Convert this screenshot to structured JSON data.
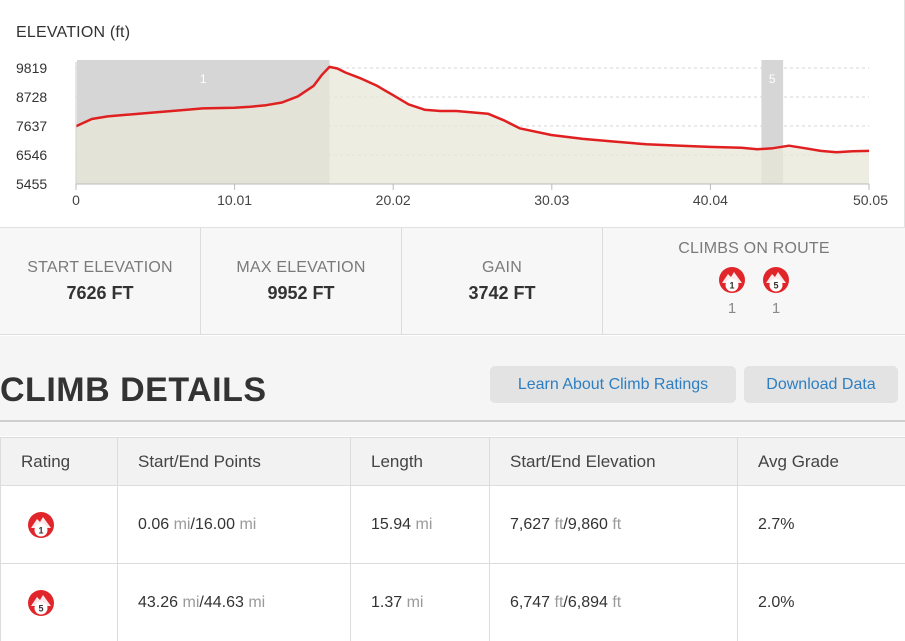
{
  "chart": {
    "title": "ELEVATION (ft)",
    "y_ticks": [
      "9819",
      "8728",
      "7637",
      "6546",
      "5455"
    ],
    "x_ticks": [
      "0",
      "10.01",
      "20.02",
      "30.03",
      "40.04",
      "50.05"
    ],
    "climb_regions": [
      {
        "label": "1",
        "start_mi": 0.06,
        "end_mi": 16.0
      },
      {
        "label": "5",
        "start_mi": 43.26,
        "end_mi": 44.63
      }
    ],
    "line_color": "#e02020",
    "fill_color": "#e8e7d8",
    "highlight_color": "#cfcfcf"
  },
  "chart_data": {
    "type": "area",
    "title": "ELEVATION (ft)",
    "xlabel": "",
    "ylabel": "",
    "xlim": [
      0,
      50.05
    ],
    "ylim": [
      5455,
      9819
    ],
    "x": [
      0,
      1,
      2,
      3,
      5,
      7,
      8,
      10,
      11,
      12,
      13,
      14,
      15,
      15.5,
      16,
      16.5,
      17,
      18,
      19,
      20,
      21,
      22,
      23,
      24,
      25,
      26,
      27,
      28,
      30,
      32,
      34,
      36,
      38,
      40,
      42,
      43,
      44,
      45,
      46,
      47,
      48,
      49,
      50.05
    ],
    "values": [
      7626,
      7900,
      8000,
      8050,
      8150,
      8250,
      8300,
      8320,
      8360,
      8420,
      8520,
      8750,
      9150,
      9550,
      9860,
      9800,
      9650,
      9420,
      9150,
      8800,
      8450,
      8250,
      8200,
      8200,
      8150,
      8100,
      7850,
      7550,
      7300,
      7150,
      7050,
      6950,
      6900,
      6850,
      6820,
      6760,
      6800,
      6894,
      6800,
      6700,
      6650,
      6690,
      6700
    ],
    "grid": true
  },
  "stats": {
    "start_elevation_label": "START ELEVATION",
    "start_elevation_value": "7626 FT",
    "max_elevation_label": "MAX ELEVATION",
    "max_elevation_value": "9952 FT",
    "gain_label": "GAIN",
    "gain_value": "3742 FT",
    "climbs_label": "CLIMBS ON ROUTE",
    "climbs": [
      {
        "rating": "1",
        "count": "1"
      },
      {
        "rating": "5",
        "count": "1"
      }
    ]
  },
  "details": {
    "title": "CLIMB DETAILS",
    "learn_button": "Learn About Climb Ratings",
    "download_button": "Download Data"
  },
  "table": {
    "headers": [
      "Rating",
      "Start/End Points",
      "Length",
      "Start/End Elevation",
      "Avg Grade"
    ],
    "rows": [
      {
        "rating": "1",
        "start": "0.06",
        "end": "16.00",
        "length": "15.94",
        "elev_start": "7,627",
        "elev_end": "9,860",
        "grade": "2.7%"
      },
      {
        "rating": "5",
        "start": "43.26",
        "end": "44.63",
        "length": "1.37",
        "elev_start": "6,747",
        "elev_end": "6,894",
        "grade": "2.0%"
      }
    ],
    "unit_mi": "mi",
    "unit_ft": "ft",
    "sep": "/"
  },
  "colors": {
    "accent_blue": "#2d7fc2",
    "badge_red": "#e0262a"
  },
  "icons": {
    "climb_badge": "mountain-rating-badge-icon"
  }
}
